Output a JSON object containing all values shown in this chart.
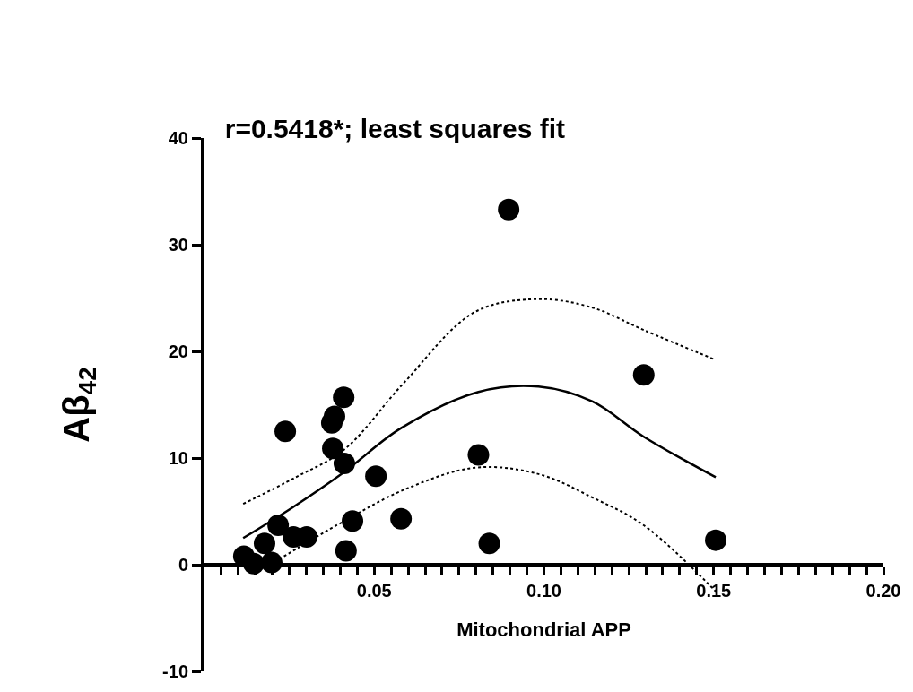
{
  "chart_data": {
    "type": "scatter",
    "title": "r=0.5418*; least squares fit",
    "xlabel": "Mitochondrial APP",
    "ylabel": "Aβ$_{42}$",
    "xlim": [
      0,
      0.2
    ],
    "ylim": [
      -10,
      40
    ],
    "xticks": [
      {
        "value": 0.005,
        "label": null
      },
      {
        "value": 0.01,
        "label": null
      },
      {
        "value": 0.015,
        "label": null
      },
      {
        "value": 0.02,
        "label": null
      },
      {
        "value": 0.025,
        "label": null
      },
      {
        "value": 0.03,
        "label": null
      },
      {
        "value": 0.035,
        "label": null
      },
      {
        "value": 0.04,
        "label": null
      },
      {
        "value": 0.045,
        "label": null
      },
      {
        "value": 0.05,
        "label": "0.05"
      },
      {
        "value": 0.055,
        "label": null
      },
      {
        "value": 0.06,
        "label": null
      },
      {
        "value": 0.065,
        "label": null
      },
      {
        "value": 0.07,
        "label": null
      },
      {
        "value": 0.075,
        "label": null
      },
      {
        "value": 0.08,
        "label": null
      },
      {
        "value": 0.085,
        "label": null
      },
      {
        "value": 0.09,
        "label": null
      },
      {
        "value": 0.095,
        "label": null
      },
      {
        "value": 0.1,
        "label": "0.10"
      },
      {
        "value": 0.105,
        "label": null
      },
      {
        "value": 0.11,
        "label": null
      },
      {
        "value": 0.115,
        "label": null
      },
      {
        "value": 0.12,
        "label": null
      },
      {
        "value": 0.125,
        "label": null
      },
      {
        "value": 0.13,
        "label": null
      },
      {
        "value": 0.135,
        "label": null
      },
      {
        "value": 0.14,
        "label": null
      },
      {
        "value": 0.145,
        "label": null
      },
      {
        "value": 0.15,
        "label": "0.15"
      },
      {
        "value": 0.155,
        "label": null
      },
      {
        "value": 0.16,
        "label": null
      },
      {
        "value": 0.165,
        "label": null
      },
      {
        "value": 0.17,
        "label": null
      },
      {
        "value": 0.175,
        "label": null
      },
      {
        "value": 0.18,
        "label": null
      },
      {
        "value": 0.185,
        "label": null
      },
      {
        "value": 0.19,
        "label": null
      },
      {
        "value": 0.195,
        "label": null
      },
      {
        "value": 0.2,
        "label": "0.20"
      }
    ],
    "yticks": [
      -10,
      0,
      10,
      20,
      30,
      40
    ],
    "series": [
      {
        "marker": "circle",
        "color": "#000000",
        "x": [
          0.0116,
          0.0145,
          0.0177,
          0.0198,
          0.0217,
          0.0238,
          0.0262,
          0.0301,
          0.0375,
          0.0383,
          0.0378,
          0.041,
          0.0412,
          0.0417,
          0.0436,
          0.0505,
          0.0579,
          0.0807,
          0.0839,
          0.0896,
          0.1294,
          0.1506
        ],
        "values": [
          0.8,
          0.1,
          2.0,
          0.2,
          3.7,
          12.5,
          2.6,
          2.6,
          13.3,
          13.9,
          10.9,
          15.7,
          9.5,
          1.3,
          4.1,
          8.3,
          4.3,
          10.3,
          2.0,
          33.3,
          17.8,
          2.3
        ]
      },
      {
        "type": "line",
        "line_style": "solid",
        "color": "#000000",
        "x": [
          0.0114,
          0.0256,
          0.0412,
          0.0579,
          0.0807,
          0.0984,
          0.1143,
          0.1294,
          0.1506
        ],
        "values": [
          2.5,
          5.3,
          8.7,
          12.8,
          16.2,
          16.7,
          15.3,
          12.0,
          8.2
        ]
      },
      {
        "type": "line",
        "line_style": "dotted",
        "color": "#000000",
        "x": [
          0.0114,
          0.0269,
          0.0412,
          0.0586,
          0.0797,
          0.0984,
          0.1143,
          0.1294,
          0.1506
        ],
        "values": [
          5.7,
          8.2,
          10.8,
          17.0,
          23.7,
          24.9,
          24.1,
          22.0,
          19.2
        ]
      },
      {
        "type": "line",
        "line_style": "dotted",
        "color": "#000000",
        "x": [
          0.0193,
          0.0298,
          0.0412,
          0.0586,
          0.0797,
          0.0984,
          0.1143,
          0.1294,
          0.1506
        ],
        "values": [
          0.0,
          2.0,
          4.1,
          7.0,
          9.1,
          8.5,
          6.3,
          3.7,
          -2.5
        ]
      }
    ]
  }
}
